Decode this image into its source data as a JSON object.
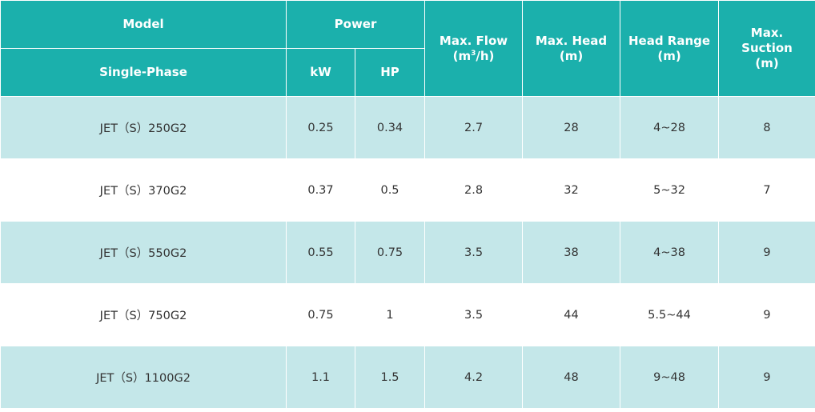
{
  "header": {
    "model": "Model",
    "power": "Power",
    "single_phase": "Single-Phase",
    "kw": "kW",
    "hp": "HP",
    "max_flow_line1": "Max. Flow",
    "max_flow_unit_pre": "(m",
    "max_flow_unit_sup": "3",
    "max_flow_unit_post": "/h)",
    "max_head_line1": "Max. Head",
    "max_head_line2": "(m)",
    "head_range_line1": "Head Range",
    "head_range_line2": "(m)",
    "max_suction_line1": "Max.",
    "max_suction_line2": "Suction",
    "max_suction_line3": "(m)"
  },
  "rows": [
    {
      "model": "JET（S）250G2",
      "kw": "0.25",
      "hp": "0.34",
      "flow": "2.7",
      "head": "28",
      "range": "4~28",
      "suction": "8"
    },
    {
      "model": "JET（S）370G2",
      "kw": "0.37",
      "hp": "0.5",
      "flow": "2.8",
      "head": "32",
      "range": "5~32",
      "suction": "7"
    },
    {
      "model": "JET（S）550G2",
      "kw": "0.55",
      "hp": "0.75",
      "flow": "3.5",
      "head": "38",
      "range": "4~38",
      "suction": "9"
    },
    {
      "model": "JET（S）750G2",
      "kw": "0.75",
      "hp": "1",
      "flow": "3.5",
      "head": "44",
      "range": "5.5~44",
      "suction": "9"
    },
    {
      "model": "JET（S）1100G2",
      "kw": "1.1",
      "hp": "1.5",
      "flow": "4.2",
      "head": "48",
      "range": "9~48",
      "suction": "9"
    }
  ],
  "colors": {
    "header_bg": "#1bb0ac",
    "row_shade": "#c4e7e9",
    "row_plain": "#ffffff",
    "text": "#333333"
  }
}
